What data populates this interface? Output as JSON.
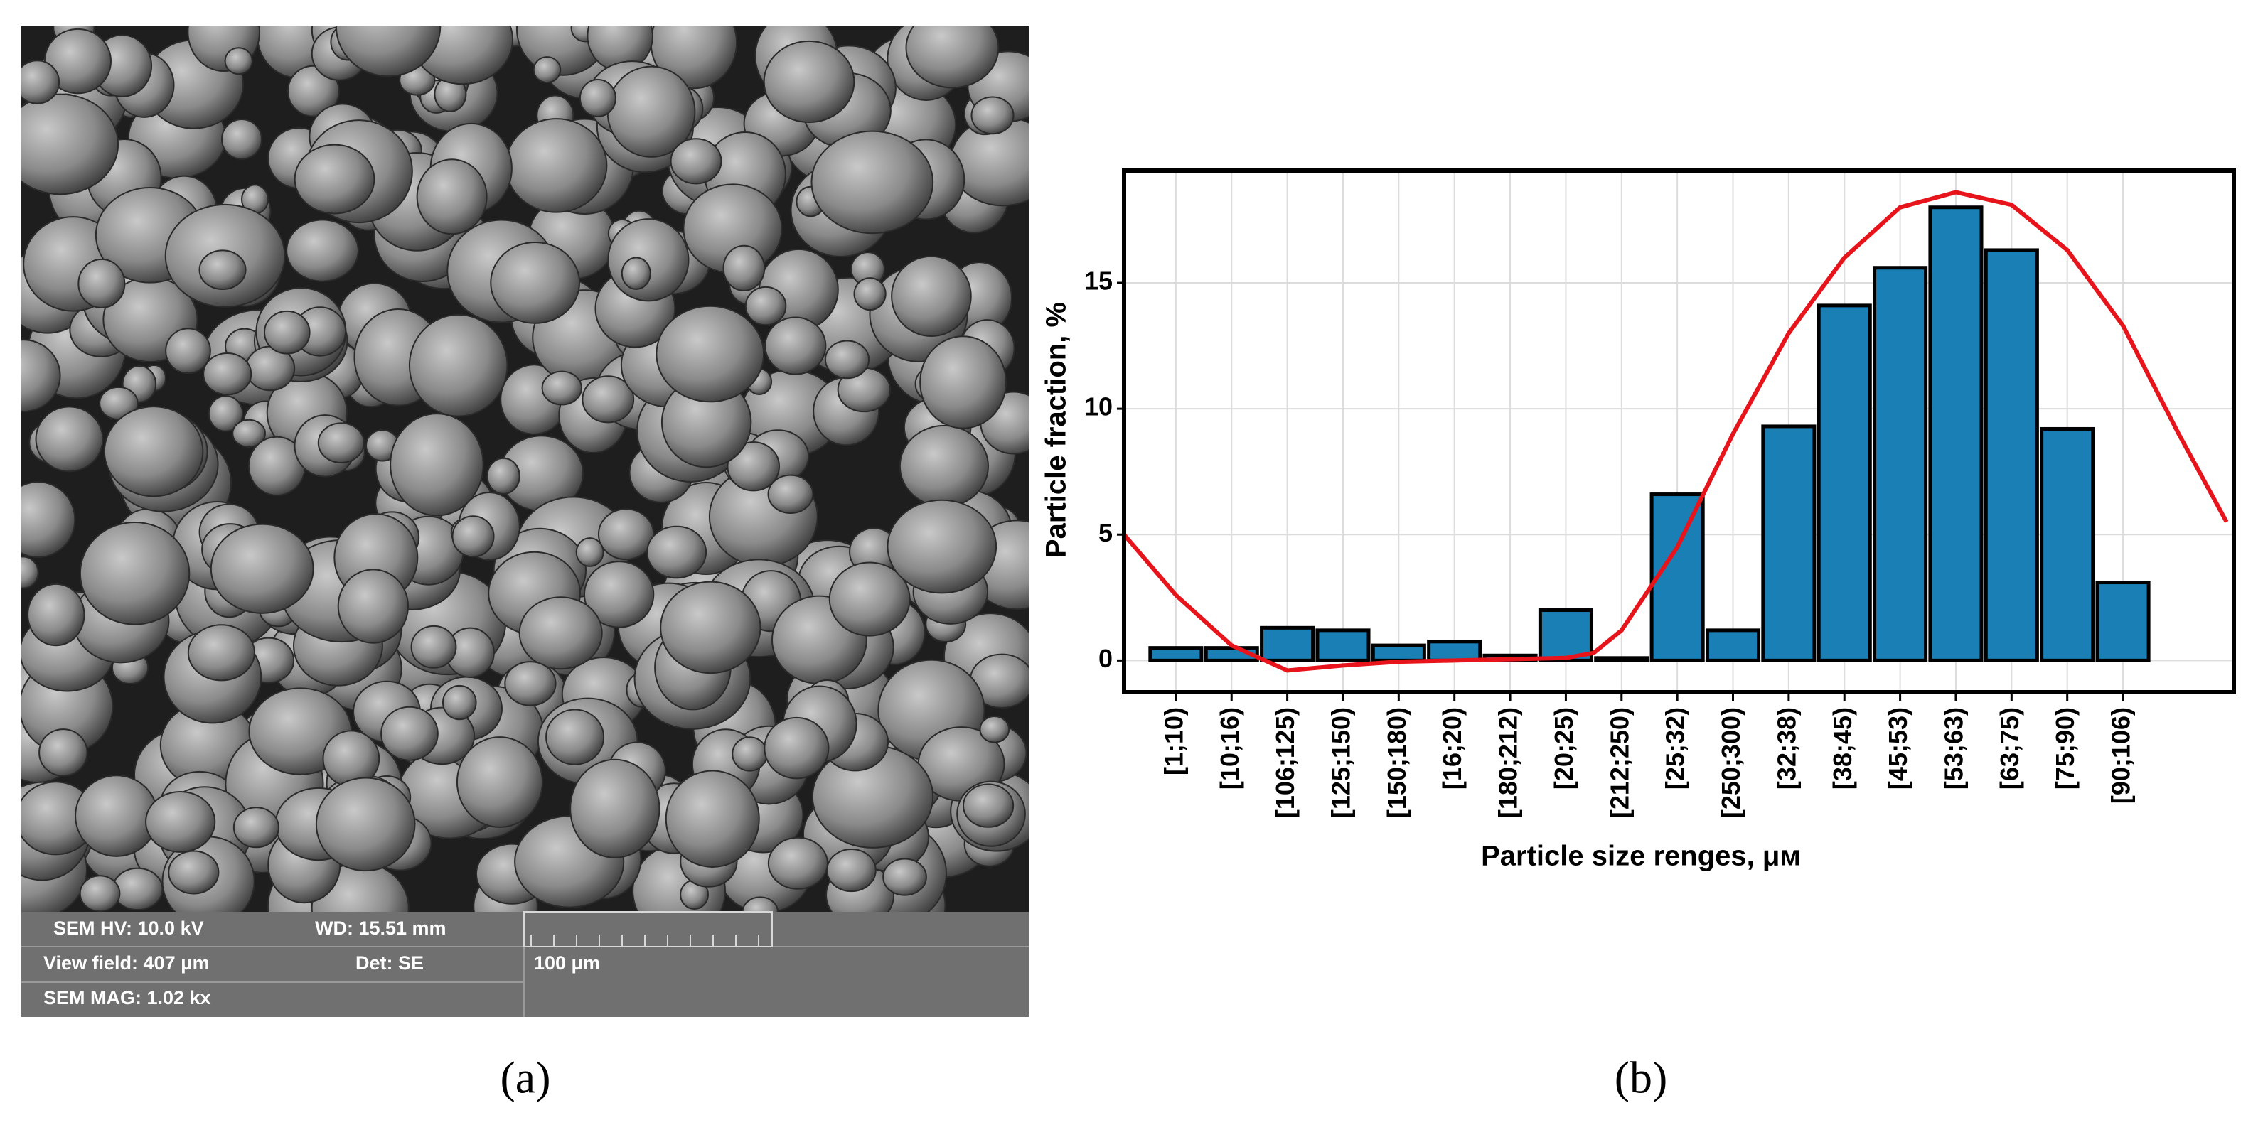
{
  "sem_panel": {
    "label": "(a)",
    "info": {
      "hv": "SEM HV: 10.0 kV",
      "wd": "WD: 15.51 mm",
      "view_field": "View field: 407 μm",
      "det": "Det: SE",
      "mag": "SEM MAG: 1.02 kx",
      "scale_bar": "100 μm"
    }
  },
  "chart_panel_label": "(b)",
  "chart_data": {
    "type": "bar",
    "x_label": "Particle size renges, μм",
    "y_label": "Particle fraction, %",
    "categories": [
      "[1;10)",
      "[10;16)",
      "[106;125)",
      "[125;150)",
      "[150;180)",
      "[16;20)",
      "[180;212)",
      "[20;25)",
      "[212;250)",
      "[25;32)",
      "[250;300)",
      "[32;38)",
      "[38;45)",
      "[45;53)",
      "[53;63)",
      "[63;75)",
      "[75;90)",
      "[90;106)"
    ],
    "values": [
      0.5,
      0.5,
      1.3,
      1.2,
      0.6,
      0.75,
      0.2,
      2.0,
      0.1,
      6.6,
      1.2,
      9.3,
      14.1,
      15.6,
      18.0,
      16.3,
      9.2,
      3.1
    ],
    "color": "#1a7fb5",
    "xlim": [
      -0.93,
      18.99
    ],
    "ylim": [
      -1.26,
      19.46
    ],
    "yticks": [
      0,
      5,
      10,
      15
    ],
    "grid": true,
    "fit_curve": {
      "color": "#e8141b",
      "x": [
        -0.93,
        0,
        1,
        2,
        3,
        4,
        5,
        6,
        7,
        7.5,
        8,
        9,
        10,
        11,
        12,
        13,
        14,
        15,
        16,
        17,
        18,
        18.86
      ],
      "values": [
        5.0,
        2.6,
        0.6,
        -0.4,
        -0.2,
        -0.05,
        0.0,
        0.05,
        0.1,
        0.3,
        1.2,
        4.5,
        9.0,
        13.0,
        16.0,
        18.0,
        18.6,
        18.1,
        16.3,
        13.3,
        9.0,
        5.5
      ]
    }
  }
}
